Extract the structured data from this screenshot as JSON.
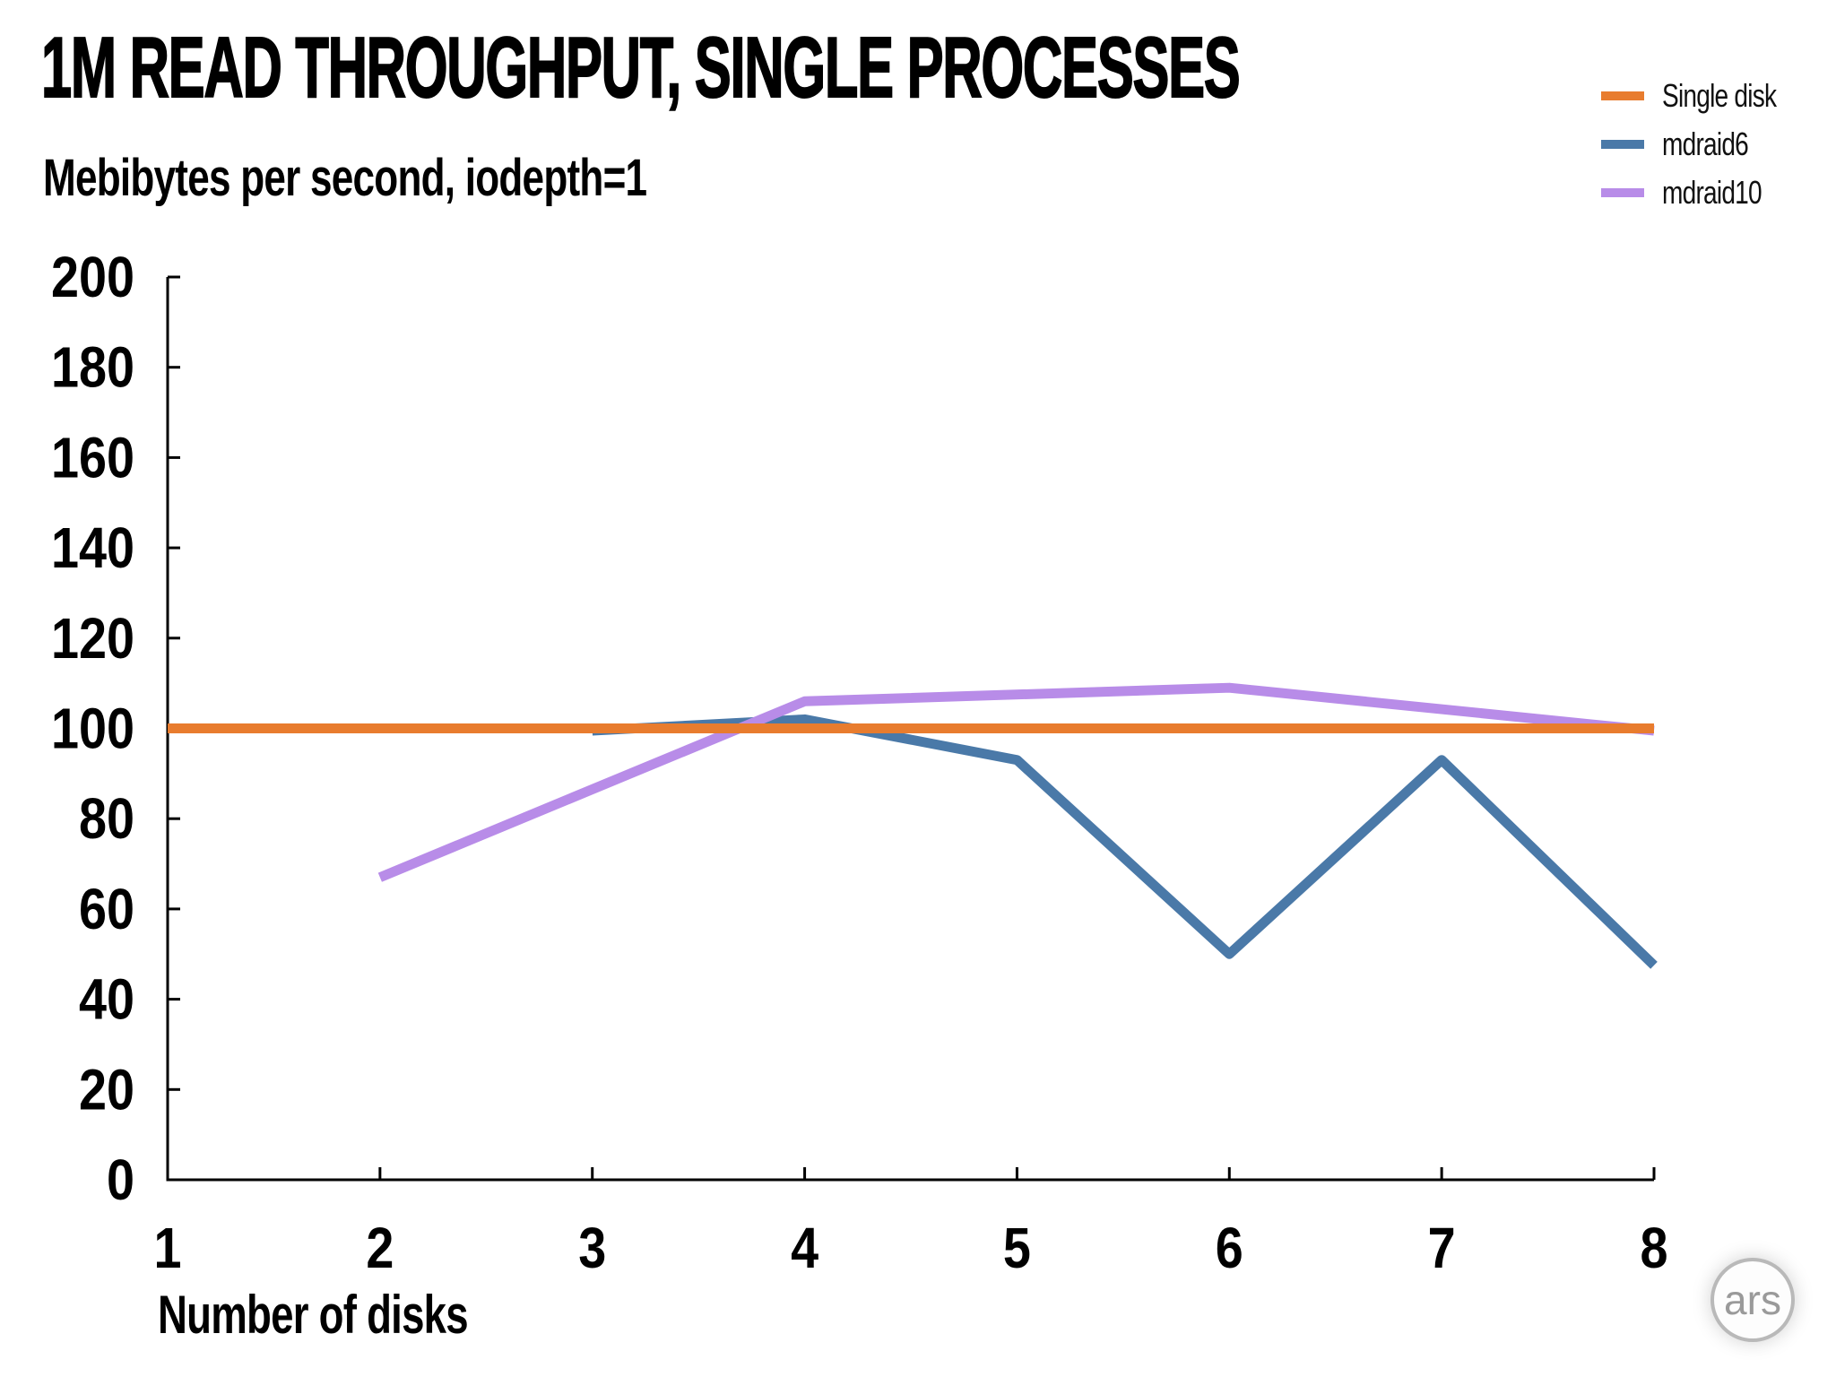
{
  "header": {
    "title": "1M READ THROUGHPUT, SINGLE PROCESSES",
    "subtitle": "Mebibytes per second, iodepth=1"
  },
  "branding": {
    "logo_text": "ars"
  },
  "legend": {
    "items": [
      {
        "label": "Single disk",
        "color": "#E87C2E"
      },
      {
        "label": "mdraid6",
        "color": "#4A79A8"
      },
      {
        "label": "mdraid10",
        "color": "#B88CE8"
      }
    ]
  },
  "axes": {
    "xlabel": "Number of disks",
    "axis_color": "#000000",
    "tick_label_color": "#000000"
  },
  "chart_data": {
    "type": "line",
    "title": "1M READ THROUGHPUT, SINGLE PROCESSES",
    "subtitle": "Mebibytes per second, iodepth=1",
    "xlabel": "Number of disks",
    "ylabel": "Mebibytes per second",
    "xlim": [
      1,
      8
    ],
    "ylim": [
      0,
      200
    ],
    "xticks": [
      1,
      2,
      3,
      4,
      5,
      6,
      7,
      8
    ],
    "yticks": [
      0,
      20,
      40,
      60,
      80,
      100,
      120,
      140,
      160,
      180,
      200
    ],
    "grid": false,
    "legend_position": "top-right",
    "series": [
      {
        "name": "mdraid6",
        "color": "#4A79A8",
        "points": [
          [
            3,
            99.5
          ],
          [
            4,
            102
          ],
          [
            5,
            93
          ],
          [
            6,
            50
          ],
          [
            7,
            93
          ],
          [
            8,
            47.5
          ]
        ]
      },
      {
        "name": "mdraid10",
        "color": "#B88CE8",
        "points": [
          [
            2,
            67
          ],
          [
            4,
            106
          ],
          [
            6,
            109
          ],
          [
            8,
            99.5
          ]
        ]
      },
      {
        "name": "Single disk",
        "color": "#E87C2E",
        "points": [
          [
            1,
            100
          ],
          [
            2,
            100
          ],
          [
            3,
            100
          ],
          [
            4,
            100
          ],
          [
            5,
            100
          ],
          [
            6,
            100
          ],
          [
            7,
            100
          ],
          [
            8,
            100
          ]
        ]
      }
    ]
  }
}
